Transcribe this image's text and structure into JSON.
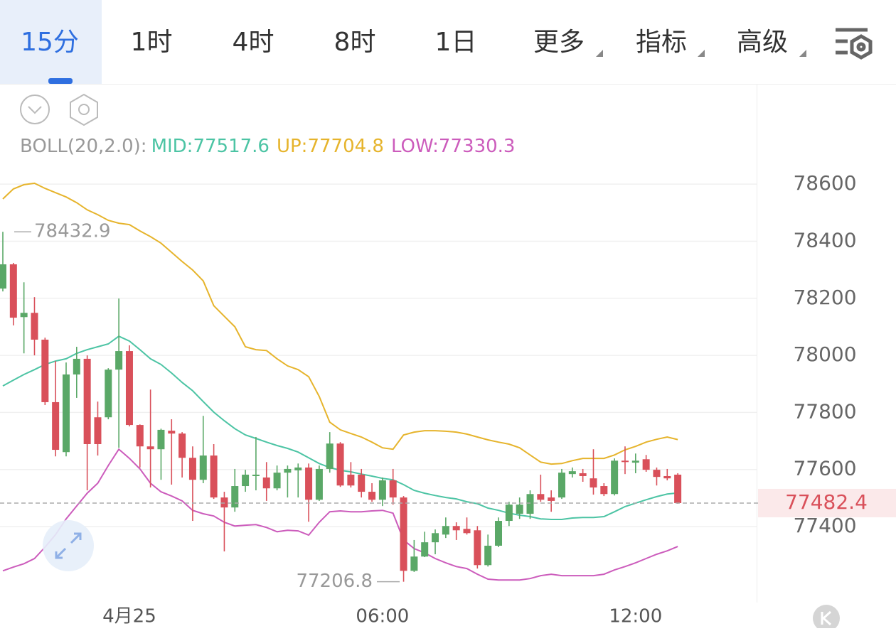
{
  "tabs": [
    "15分",
    "1时",
    "4时",
    "8时",
    "1日",
    "更多",
    "指标",
    "高级"
  ],
  "chart_data": {
    "type": "candlestick",
    "indicator": "BOLL(20,2.0):",
    "categories": [
      null,
      null,
      null,
      null,
      null,
      null,
      null,
      null,
      null,
      null,
      null,
      null,
      "4月25",
      null,
      null,
      null,
      null,
      null,
      null,
      null,
      null,
      null,
      null,
      null,
      null,
      null,
      null,
      null,
      null,
      null,
      null,
      null,
      null,
      null,
      null,
      null,
      "06:00",
      null,
      null,
      null,
      null,
      null,
      null,
      null,
      null,
      null,
      null,
      null,
      null,
      null,
      null,
      null,
      null,
      null,
      null,
      null,
      null,
      null,
      null,
      null,
      "12:00",
      null,
      null,
      null,
      null
    ],
    "open": [
      78234,
      78319,
      78134,
      78149,
      78055,
      77836,
      77661,
      77933,
      77988,
      77783,
      77783,
      77950,
      78015,
      77756,
      77681,
      77671,
      77736,
      77726,
      77641,
      77564,
      77649,
      77502,
      77467,
      77542,
      77577,
      77572,
      77534,
      77589,
      77597,
      77607,
      77494,
      77602,
      77691,
      77582,
      77582,
      77522,
      77494,
      77562,
      77502,
      77245,
      77295,
      77345,
      77372,
      77402,
      77392,
      77387,
      77265,
      77333,
      77420,
      77445,
      77445,
      77514,
      77502,
      77502,
      77584,
      77587,
      77569,
      77542,
      77514,
      77631,
      77624,
      77636,
      77599,
      77577,
      77582
    ],
    "high": [
      78432.9,
      78324,
      78256,
      78204,
      78062,
      77980,
      77975,
      78030,
      78000,
      77838,
      77955,
      78199,
      78035,
      77758,
      77880,
      77743,
      77776,
      77731,
      77681,
      77788,
      77689,
      77522,
      77602,
      77599,
      77714,
      77626,
      77614,
      77614,
      77621,
      77621,
      77614,
      77731,
      77696,
      77626,
      77602,
      77552,
      77572,
      77602,
      77507,
      77353,
      77382,
      77390,
      77432,
      77415,
      77432,
      77402,
      77372,
      77432,
      77487,
      77502,
      77527,
      77582,
      77527,
      77602,
      77607,
      77602,
      77671,
      77552,
      77639,
      77681,
      77656,
      77651,
      77607,
      77602,
      77587
    ],
    "low": [
      78224,
      78105,
      78007,
      78000,
      77826,
      77646,
      77646,
      77851,
      77527,
      77649,
      77776,
      77676,
      77751,
      77607,
      77537,
      77564,
      77547,
      77572,
      77420,
      77552,
      77497,
      77313,
      77452,
      77522,
      77527,
      77490,
      77527,
      77502,
      77502,
      77417,
      77490,
      77589,
      77539,
      77537,
      77502,
      77487,
      77472,
      77477,
      77206.8,
      77241,
      77293,
      77303,
      77360,
      77353,
      77372,
      77253,
      77260,
      77328,
      77402,
      77427,
      77427,
      77487,
      77452,
      77497,
      77572,
      77557,
      77512,
      77507,
      77509,
      77584,
      77587,
      77592,
      77544,
      77562,
      77480
    ],
    "close": [
      78319,
      78132,
      78149,
      78055,
      77836,
      77669,
      77933,
      77988,
      77689,
      77689,
      77950,
      78015,
      77756,
      77681,
      77671,
      77739,
      77726,
      77641,
      77564,
      77649,
      77502,
      77467,
      77542,
      77582,
      77582,
      77534,
      77589,
      77602,
      77607,
      77494,
      77602,
      77691,
      77544,
      77544,
      77522,
      77494,
      77562,
      77502,
      77245,
      77295,
      77345,
      77377,
      77402,
      77387,
      77377,
      77265,
      77333,
      77420,
      77477,
      77477,
      77514,
      77494,
      77490,
      77589,
      77594,
      77577,
      77537,
      77514,
      77631,
      77626,
      77631,
      77599,
      77574,
      77569,
      77482.4
    ],
    "up_color": "#5aa867",
    "down_color": "#d9505a",
    "series": [
      {
        "name": "MID:77517.6",
        "color": "#4cc4a4",
        "values": [
          77893,
          77913,
          77933,
          77950,
          77968,
          77980,
          77988,
          78007,
          78020,
          78030,
          78040,
          78067,
          78050,
          78020,
          77988,
          77968,
          77938,
          77905,
          77876,
          77838,
          77801,
          77771,
          77743,
          77721,
          77709,
          77696,
          77684,
          77674,
          77661,
          77641,
          77621,
          77607,
          77597,
          77592,
          77584,
          77577,
          77569,
          77564,
          77547,
          77527,
          77517,
          77509,
          77502,
          77497,
          77487,
          77480,
          77465,
          77457,
          77447,
          77440,
          77435,
          77427,
          77425,
          77425,
          77430,
          77432,
          77432,
          77435,
          77452,
          77470,
          77482,
          77494,
          77505,
          77514,
          77517.6
        ]
      },
      {
        "name": "UP:77704.8",
        "color": "#e6b42c",
        "values": [
          78548,
          78583,
          78598,
          78603,
          78585,
          78570,
          78555,
          78535,
          78510,
          78493,
          78473,
          78463,
          78458,
          78436,
          78416,
          78393,
          78361,
          78329,
          78299,
          78261,
          78174,
          78137,
          78100,
          78030,
          78020,
          78017,
          77988,
          77963,
          77950,
          77925,
          77856,
          77766,
          77739,
          77726,
          77714,
          77696,
          77676,
          77671,
          77721,
          77731,
          77736,
          77736,
          77734,
          77731,
          77724,
          77714,
          77704,
          77696,
          77689,
          77676,
          77651,
          77626,
          77619,
          77621,
          77631,
          77639,
          77639,
          77639,
          77651,
          77669,
          77681,
          77696,
          77706,
          77714,
          77704.8
        ]
      },
      {
        "name": "LOW:77330.3",
        "color": "#cc5cbc",
        "values": [
          77245,
          77258,
          77270,
          77288,
          77328,
          77372,
          77427,
          77472,
          77517,
          77552,
          77614,
          77671,
          77639,
          77602,
          77552,
          77522,
          77507,
          77490,
          77457,
          77445,
          77437,
          77415,
          77402,
          77405,
          77407,
          77397,
          77382,
          77387,
          77385,
          77370,
          77415,
          77452,
          77455,
          77452,
          77452,
          77455,
          77457,
          77447,
          77353,
          77323,
          77308,
          77288,
          77273,
          77260,
          77253,
          77233,
          77216,
          77213,
          77213,
          77213,
          77218,
          77228,
          77233,
          77228,
          77228,
          77228,
          77228,
          77233,
          77248,
          77260,
          77273,
          77288,
          77303,
          77315,
          77330.3
        ]
      }
    ],
    "max_label": 78432.9,
    "min_label": 77206.8,
    "last_price": 77482.4,
    "ylim": [
      77130,
      78670
    ],
    "yticks": [
      77400,
      77600,
      77800,
      78000,
      78200,
      78400,
      78600
    ],
    "grid": true
  }
}
